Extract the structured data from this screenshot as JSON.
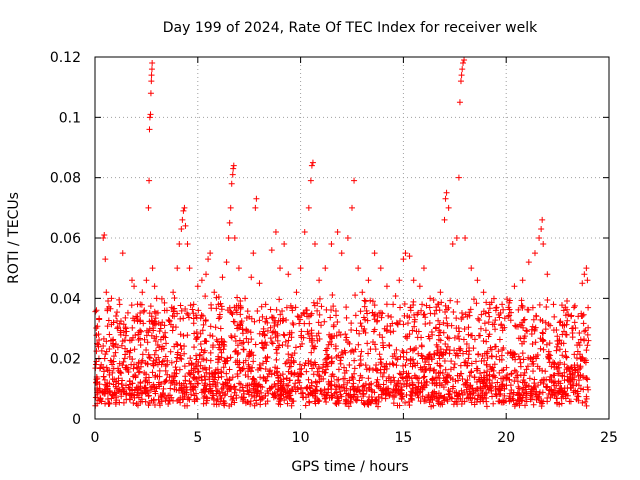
{
  "chart_data": {
    "type": "scatter",
    "title": "Day 199 of 2024, Rate Of TEC Index for receiver welk",
    "xlabel": "GPS time / hours",
    "ylabel": "ROTI / TECUs",
    "xlim": [
      0,
      25
    ],
    "ylim": [
      0,
      0.12
    ],
    "x_ticks": [
      "0",
      "5",
      "10",
      "15",
      "20",
      "25"
    ],
    "y_ticks": [
      "0",
      "0.02",
      "0.04",
      "0.06",
      "0.08",
      "0.1",
      "0.12"
    ],
    "grid": true,
    "marker": "plus",
    "color": "#ff0000",
    "series": [
      {
        "points": [
          [
            0.05,
            0.012
          ],
          [
            0.1,
            0.025
          ],
          [
            0.2,
            0.033
          ],
          [
            0.3,
            0.018
          ],
          [
            0.4,
            0.06
          ],
          [
            0.45,
            0.061
          ],
          [
            0.5,
            0.053
          ],
          [
            0.55,
            0.042
          ],
          [
            0.7,
            0.028
          ],
          [
            0.8,
            0.04
          ],
          [
            0.9,
            0.032
          ],
          [
            1.0,
            0.022
          ],
          [
            1.2,
            0.038
          ],
          [
            1.35,
            0.055
          ],
          [
            1.5,
            0.03
          ],
          [
            1.7,
            0.026
          ],
          [
            1.8,
            0.046
          ],
          [
            1.9,
            0.044
          ],
          [
            2.0,
            0.034
          ],
          [
            2.1,
            0.028
          ],
          [
            2.2,
            0.038
          ],
          [
            2.3,
            0.042
          ],
          [
            2.4,
            0.036
          ],
          [
            2.5,
            0.046
          ],
          [
            2.6,
            0.07
          ],
          [
            2.63,
            0.079
          ],
          [
            2.65,
            0.096
          ],
          [
            2.67,
            0.1
          ],
          [
            2.7,
            0.101
          ],
          [
            2.72,
            0.108
          ],
          [
            2.74,
            0.112
          ],
          [
            2.75,
            0.114
          ],
          [
            2.77,
            0.116
          ],
          [
            2.78,
            0.118
          ],
          [
            2.8,
            0.05
          ],
          [
            2.9,
            0.044
          ],
          [
            3.0,
            0.04
          ],
          [
            3.2,
            0.03
          ],
          [
            3.5,
            0.036
          ],
          [
            3.8,
            0.042
          ],
          [
            4.0,
            0.05
          ],
          [
            4.1,
            0.058
          ],
          [
            4.2,
            0.063
          ],
          [
            4.25,
            0.066
          ],
          [
            4.3,
            0.069
          ],
          [
            4.35,
            0.07
          ],
          [
            4.4,
            0.064
          ],
          [
            4.5,
            0.058
          ],
          [
            4.6,
            0.05
          ],
          [
            4.8,
            0.038
          ],
          [
            5.0,
            0.044
          ],
          [
            5.2,
            0.046
          ],
          [
            5.4,
            0.048
          ],
          [
            5.5,
            0.053
          ],
          [
            5.6,
            0.055
          ],
          [
            5.8,
            0.042
          ],
          [
            6.0,
            0.038
          ],
          [
            6.2,
            0.047
          ],
          [
            6.4,
            0.052
          ],
          [
            6.5,
            0.06
          ],
          [
            6.55,
            0.065
          ],
          [
            6.6,
            0.07
          ],
          [
            6.65,
            0.078
          ],
          [
            6.7,
            0.081
          ],
          [
            6.72,
            0.083
          ],
          [
            6.75,
            0.084
          ],
          [
            6.8,
            0.06
          ],
          [
            7.0,
            0.05
          ],
          [
            7.3,
            0.04
          ],
          [
            7.6,
            0.047
          ],
          [
            7.7,
            0.055
          ],
          [
            7.8,
            0.07
          ],
          [
            7.85,
            0.073
          ],
          [
            8.0,
            0.045
          ],
          [
            8.3,
            0.038
          ],
          [
            8.6,
            0.056
          ],
          [
            8.8,
            0.062
          ],
          [
            9.0,
            0.05
          ],
          [
            9.2,
            0.058
          ],
          [
            9.4,
            0.048
          ],
          [
            9.6,
            0.036
          ],
          [
            9.8,
            0.042
          ],
          [
            10.0,
            0.05
          ],
          [
            10.2,
            0.062
          ],
          [
            10.4,
            0.07
          ],
          [
            10.5,
            0.079
          ],
          [
            10.55,
            0.084
          ],
          [
            10.6,
            0.085
          ],
          [
            10.7,
            0.058
          ],
          [
            10.9,
            0.046
          ],
          [
            11.2,
            0.05
          ],
          [
            11.5,
            0.058
          ],
          [
            11.8,
            0.062
          ],
          [
            12.0,
            0.055
          ],
          [
            12.3,
            0.06
          ],
          [
            12.5,
            0.07
          ],
          [
            12.6,
            0.079
          ],
          [
            12.8,
            0.05
          ],
          [
            13.0,
            0.042
          ],
          [
            13.3,
            0.046
          ],
          [
            13.6,
            0.055
          ],
          [
            13.9,
            0.05
          ],
          [
            14.2,
            0.044
          ],
          [
            14.5,
            0.038
          ],
          [
            14.8,
            0.046
          ],
          [
            15.0,
            0.053
          ],
          [
            15.1,
            0.055
          ],
          [
            15.3,
            0.054
          ],
          [
            15.5,
            0.046
          ],
          [
            15.8,
            0.044
          ],
          [
            16.0,
            0.05
          ],
          [
            16.3,
            0.04
          ],
          [
            16.6,
            0.036
          ],
          [
            16.8,
            0.042
          ],
          [
            17.0,
            0.066
          ],
          [
            17.05,
            0.073
          ],
          [
            17.1,
            0.075
          ],
          [
            17.2,
            0.07
          ],
          [
            17.4,
            0.058
          ],
          [
            17.6,
            0.06
          ],
          [
            17.7,
            0.08
          ],
          [
            17.75,
            0.105
          ],
          [
            17.8,
            0.112
          ],
          [
            17.83,
            0.114
          ],
          [
            17.86,
            0.116
          ],
          [
            17.9,
            0.118
          ],
          [
            17.95,
            0.119
          ],
          [
            18.0,
            0.06
          ],
          [
            18.3,
            0.05
          ],
          [
            18.6,
            0.046
          ],
          [
            18.9,
            0.042
          ],
          [
            19.2,
            0.038
          ],
          [
            19.5,
            0.036
          ],
          [
            19.8,
            0.038
          ],
          [
            20.1,
            0.034
          ],
          [
            20.4,
            0.044
          ],
          [
            20.8,
            0.046
          ],
          [
            21.1,
            0.052
          ],
          [
            21.4,
            0.055
          ],
          [
            21.6,
            0.06
          ],
          [
            21.7,
            0.063
          ],
          [
            21.75,
            0.066
          ],
          [
            21.8,
            0.058
          ],
          [
            22.0,
            0.048
          ],
          [
            22.3,
            0.038
          ],
          [
            22.6,
            0.032
          ],
          [
            22.9,
            0.028
          ],
          [
            23.2,
            0.03
          ],
          [
            23.5,
            0.034
          ],
          [
            23.7,
            0.045
          ],
          [
            23.8,
            0.048
          ],
          [
            23.9,
            0.05
          ],
          [
            23.95,
            0.046
          ],
          [
            24.0,
            0.026
          ]
        ]
      }
    ]
  }
}
